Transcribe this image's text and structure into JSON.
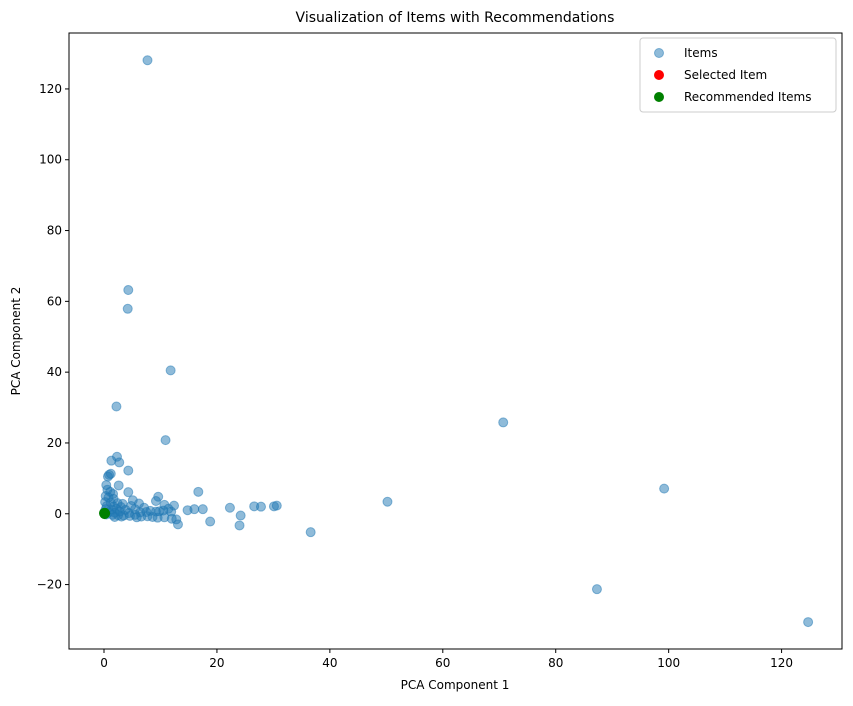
{
  "chart_data": {
    "type": "scatter",
    "title": "Visualization of Items with Recommendations",
    "xlabel": "PCA Component 1",
    "ylabel": "PCA Component 2",
    "xlim": [
      -6.2,
      130.7
    ],
    "ylim": [
      -38.2,
      135.8
    ],
    "xticks": [
      0,
      20,
      40,
      60,
      80,
      100,
      120
    ],
    "yticks": [
      -20,
      0,
      20,
      40,
      60,
      80,
      100,
      120
    ],
    "xtick_labels": [
      "0",
      "20",
      "40",
      "60",
      "80",
      "100",
      "120"
    ],
    "ytick_labels": [
      "−20",
      "0",
      "20",
      "40",
      "60",
      "80",
      "100",
      "120"
    ],
    "grid": false,
    "legend_position": "top-right",
    "series": [
      {
        "name": "Items",
        "color": "#1f77b4",
        "alpha": 0.5,
        "points": [
          [
            7.7,
            128.1
          ],
          [
            4.3,
            63.2
          ],
          [
            4.2,
            57.9
          ],
          [
            11.8,
            40.5
          ],
          [
            2.2,
            30.3
          ],
          [
            10.9,
            20.8
          ],
          [
            70.7,
            25.8
          ],
          [
            99.2,
            7.1
          ],
          [
            50.2,
            3.4
          ],
          [
            87.3,
            -21.3
          ],
          [
            124.7,
            -30.6
          ],
          [
            36.6,
            -5.2
          ],
          [
            2.3,
            16.1
          ],
          [
            2.7,
            14.5
          ],
          [
            1.3,
            15.0
          ],
          [
            4.3,
            12.2
          ],
          [
            0.9,
            11.0
          ],
          [
            0.7,
            10.5
          ],
          [
            1.2,
            11.3
          ],
          [
            0.4,
            8.1
          ],
          [
            2.6,
            8.0
          ],
          [
            0.6,
            6.8
          ],
          [
            1.1,
            6.2
          ],
          [
            1.6,
            5.6
          ],
          [
            4.3,
            6.1
          ],
          [
            0.3,
            5.0
          ],
          [
            0.8,
            4.6
          ],
          [
            1.7,
            4.2
          ],
          [
            5.1,
            3.8
          ],
          [
            9.6,
            4.8
          ],
          [
            9.2,
            3.6
          ],
          [
            0.2,
            3.3
          ],
          [
            1.2,
            3.1
          ],
          [
            2.4,
            3.0
          ],
          [
            3.3,
            2.8
          ],
          [
            6.2,
            2.9
          ],
          [
            10.7,
            2.5
          ],
          [
            0.5,
            2.2
          ],
          [
            1.7,
            2.0
          ],
          [
            3.0,
            1.9
          ],
          [
            4.8,
            2.2
          ],
          [
            7.1,
            1.7
          ],
          [
            12.4,
            2.3
          ],
          [
            11.4,
            1.4
          ],
          [
            16.7,
            6.2
          ],
          [
            0.3,
            1.3
          ],
          [
            1.3,
            1.2
          ],
          [
            2.2,
            1.4
          ],
          [
            3.8,
            1.1
          ],
          [
            5.5,
            1.3
          ],
          [
            8.2,
            0.8
          ],
          [
            9.8,
            0.7
          ],
          [
            14.8,
            1.0
          ],
          [
            16.0,
            1.3
          ],
          [
            17.5,
            1.3
          ],
          [
            22.3,
            1.7
          ],
          [
            26.6,
            2.1
          ],
          [
            27.8,
            2.0
          ],
          [
            30.1,
            2.1
          ],
          [
            30.6,
            2.3
          ],
          [
            0.1,
            0.5
          ],
          [
            0.9,
            0.4
          ],
          [
            1.9,
            0.3
          ],
          [
            2.8,
            0.6
          ],
          [
            4.4,
            0.2
          ],
          [
            6.4,
            0.4
          ],
          [
            7.5,
            0.5
          ],
          [
            9.2,
            0.6
          ],
          [
            10.5,
            0.9
          ],
          [
            11.9,
            0.6
          ],
          [
            0.4,
            -0.2
          ],
          [
            1.5,
            -0.3
          ],
          [
            2.5,
            -0.4
          ],
          [
            3.5,
            -0.5
          ],
          [
            4.6,
            -0.6
          ],
          [
            5.5,
            -0.3
          ],
          [
            6.6,
            -0.8
          ],
          [
            7.7,
            -0.7
          ],
          [
            8.6,
            -0.9
          ],
          [
            9.5,
            -1.1
          ],
          [
            10.7,
            -1.0
          ],
          [
            12.0,
            -1.4
          ],
          [
            12.8,
            -1.6
          ],
          [
            13.1,
            -3.0
          ],
          [
            18.8,
            -2.2
          ],
          [
            24.2,
            -0.5
          ],
          [
            24.0,
            -3.3
          ],
          [
            5.8,
            -1.0
          ],
          [
            3.1,
            -0.8
          ],
          [
            1.9,
            -0.9
          ]
        ]
      },
      {
        "name": "Selected Item",
        "color": "#ff0000",
        "alpha": 1,
        "points": [
          [
            0.1,
            0.1
          ]
        ]
      },
      {
        "name": "Recommended Items",
        "color": "#008000",
        "alpha": 1,
        "points": [
          [
            0.0,
            0.2
          ],
          [
            0.1,
            -0.1
          ],
          [
            0.2,
            0.1
          ],
          [
            0.05,
            0.0
          ],
          [
            0.15,
            0.25
          ]
        ]
      }
    ]
  }
}
